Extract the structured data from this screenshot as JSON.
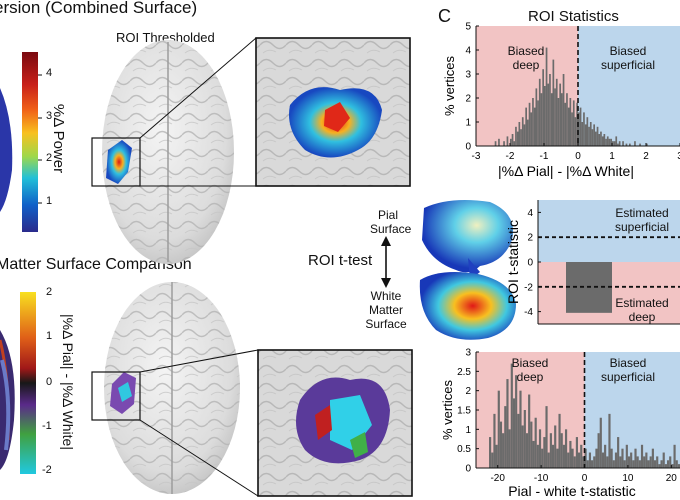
{
  "figure": {
    "title_top_left": "ersion (Combined Surface)",
    "title_bottom_left": "Matter Surface Comparison",
    "roi_thresholded": "ROI Thresholded",
    "panel_c_letter": "C",
    "panel_c_title": "ROI Statistics",
    "colorbar1": {
      "label": "%Δ Power",
      "ticks": [
        "4",
        "3",
        "2",
        "1"
      ],
      "colors": [
        "#7a0a10",
        "#c8201a",
        "#f06018",
        "#f8c020",
        "#9fd84a",
        "#22c0d8",
        "#1060c8",
        "#2a2a8c"
      ]
    },
    "colorbar2": {
      "label": "|%Δ Pial| - |%Δ White|",
      "ticks": [
        "2",
        "1",
        "0",
        "-1",
        "-2"
      ],
      "colors": [
        "#f8e020",
        "#e06018",
        "#a01818",
        "#181818",
        "#5a2a8a",
        "#40a040",
        "#20c8e0"
      ]
    },
    "ttest": {
      "label": "ROI t-test",
      "pial": "Pial Surface",
      "white": "White Matter Surface"
    },
    "biased_deep": "Biased deep",
    "biased_superficial": "Biased superficial",
    "est_superficial": "Estimated superficial",
    "est_deep": "Estimated deep"
  },
  "chart_data": [
    {
      "type": "bar",
      "title": "ROI Statistics",
      "xlabel": "|%Δ Pial| - |%Δ White|",
      "ylabel": "% vertices",
      "xlim": [
        -3,
        3
      ],
      "ylim": [
        0,
        5
      ],
      "x_ticks": [
        "-3",
        "-2",
        "-1",
        "0",
        "1",
        "2",
        "3"
      ],
      "y_ticks": [
        "0",
        "1",
        "2",
        "3",
        "4",
        "5"
      ],
      "bin_start": -2.5,
      "bin_width": 0.05,
      "values": [
        0,
        0.2,
        0,
        0.3,
        0,
        0,
        0.2,
        0,
        0.4,
        0,
        0.3,
        0.5,
        0.2,
        0.8,
        0.6,
        1.0,
        0.7,
        1.2,
        0.9,
        1.6,
        1.1,
        1.8,
        1.4,
        2.0,
        1.6,
        2.4,
        1.9,
        2.8,
        2.2,
        3.2,
        2.5,
        4.1,
        2.6,
        3.0,
        2.2,
        3.6,
        2.4,
        2.8,
        2.0,
        2.6,
        2.2,
        3.0,
        1.8,
        2.2,
        1.6,
        2.0,
        1.4,
        1.9,
        1.2,
        1.8,
        1.4,
        1.6,
        1.0,
        1.4,
        0.9,
        1.2,
        0.8,
        1.0,
        0.7,
        0.9,
        0.6,
        0.8,
        0.5,
        0.6,
        0.4,
        0.5,
        0.3,
        0.4,
        0.3,
        0.3,
        0.2,
        0.2,
        0.4,
        0.1,
        0.2,
        0,
        0.2,
        0,
        0.1,
        0,
        0.1,
        0,
        0,
        0.2,
        0,
        0,
        0.1,
        0,
        0,
        0,
        0.1
      ]
    },
    {
      "type": "bar",
      "ylabel": "ROI t-statistic",
      "ylim": [
        -5,
        5
      ],
      "y_ticks": [
        "4",
        "2",
        "0",
        "-2",
        "-4"
      ],
      "values": [
        -4.1
      ],
      "thresholds": [
        2,
        -2
      ]
    },
    {
      "type": "bar",
      "xlabel": "Pial - white t-statistic",
      "ylabel": "% vertices",
      "xlim": [
        -25,
        22
      ],
      "ylim": [
        0,
        3
      ],
      "x_ticks": [
        "-20",
        "-10",
        "0",
        "10",
        "20"
      ],
      "y_ticks": [
        "0",
        "0.5",
        "1",
        "1.5",
        "2",
        "2.5",
        "3"
      ],
      "bin_start": -22,
      "bin_width": 0.5,
      "values": [
        0.8,
        0.4,
        1.4,
        0.6,
        2.0,
        1.2,
        0.9,
        1.6,
        2.3,
        1.0,
        2.7,
        1.8,
        2.4,
        1.4,
        2.0,
        1.1,
        1.5,
        0.9,
        1.9,
        1.2,
        0.7,
        1.3,
        0.6,
        1.0,
        0.5,
        0.8,
        1.6,
        0.4,
        0.9,
        0.6,
        1.1,
        0.5,
        1.4,
        0.9,
        0.6,
        1.0,
        0.4,
        0.7,
        0.5,
        0.3,
        0.8,
        0.4,
        0.6,
        0.3,
        0.5,
        0.2,
        0.4,
        0.2,
        0.3,
        0.5,
        0.9,
        1.3,
        0.4,
        0.6,
        0.3,
        1.4,
        0.5,
        0.2,
        0.4,
        0.8,
        0.3,
        0.5,
        0.2,
        0.6,
        0.3,
        0.4,
        0.2,
        0.5,
        0.3,
        0.2,
        0.6,
        0.3,
        0.4,
        0.2,
        0.3,
        0.5,
        0.2,
        0.3,
        0.1,
        0.2,
        0.4,
        0.1,
        0.2,
        0.3,
        0.1,
        0.6,
        0.2,
        0.1
      ]
    }
  ]
}
